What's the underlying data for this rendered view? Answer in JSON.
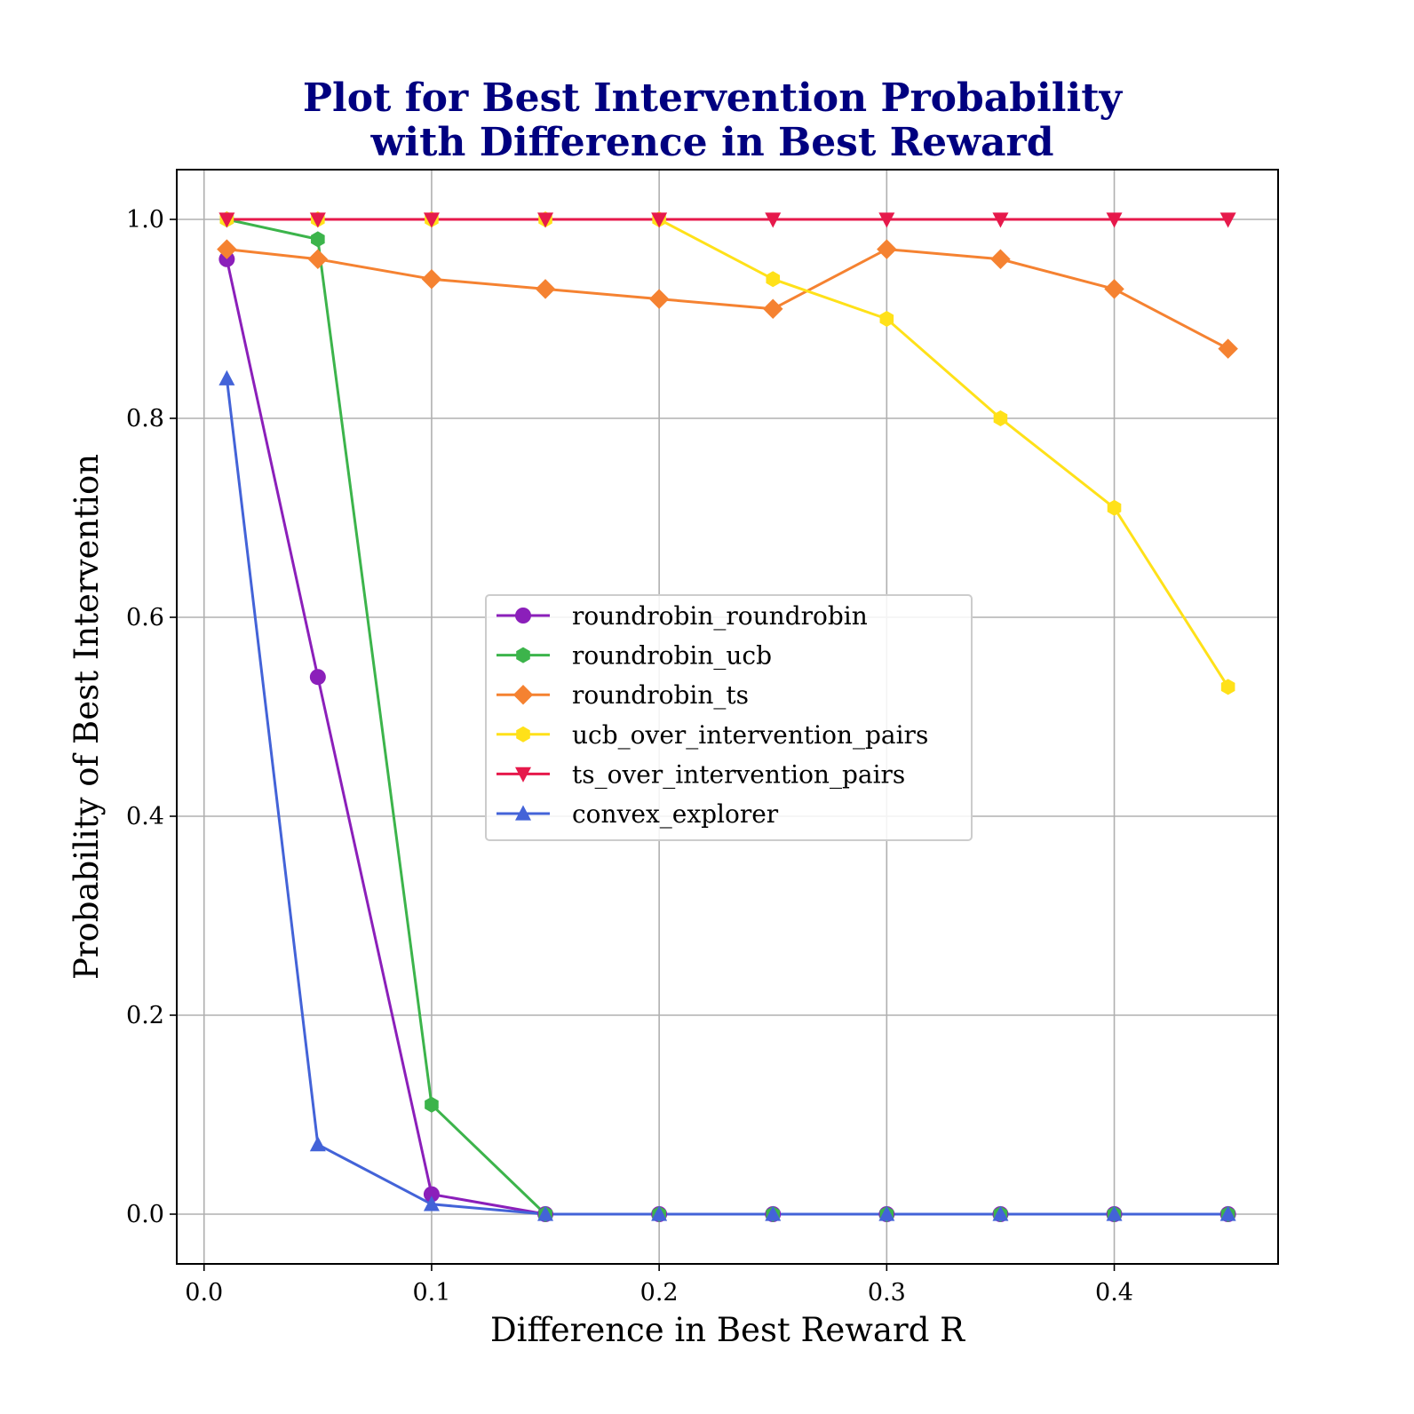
{
  "chart_data": {
    "type": "line",
    "title_lines": [
      "Plot for Best Intervention Probability",
      "with Difference in Best Reward"
    ],
    "xlabel": "Difference in Best Reward R",
    "ylabel": "Probability of Best Intervention",
    "xlim": [
      -0.012,
      0.472
    ],
    "ylim": [
      -0.05,
      1.05
    ],
    "xticks": [
      0.0,
      0.1,
      0.2,
      0.3,
      0.4
    ],
    "xtick_labels": [
      "0.0",
      "0.1",
      "0.2",
      "0.3",
      "0.4"
    ],
    "yticks": [
      0.0,
      0.2,
      0.4,
      0.6,
      0.8,
      1.0
    ],
    "ytick_labels": [
      "0.0",
      "0.2",
      "0.4",
      "0.6",
      "0.8",
      "1.0"
    ],
    "grid": true,
    "legend_position": "center",
    "x": [
      0.01,
      0.05,
      0.1,
      0.15,
      0.2,
      0.25,
      0.3,
      0.35,
      0.4,
      0.45
    ],
    "series": [
      {
        "name": "roundrobin_roundrobin",
        "color": "#8b1fba",
        "marker": "circle",
        "values": [
          0.96,
          0.54,
          0.02,
          0.0,
          0.0,
          0.0,
          0.0,
          0.0,
          0.0,
          0.0
        ]
      },
      {
        "name": "roundrobin_ucb",
        "color": "#3cb44b",
        "marker": "hexagon",
        "values": [
          1.0,
          0.98,
          0.11,
          0.0,
          0.0,
          0.0,
          0.0,
          0.0,
          0.0,
          0.0
        ]
      },
      {
        "name": "roundrobin_ts",
        "color": "#f58231",
        "marker": "diamond",
        "values": [
          0.97,
          0.96,
          0.94,
          0.93,
          0.92,
          0.91,
          0.97,
          0.96,
          0.93,
          0.87
        ]
      },
      {
        "name": "ucb_over_intervention_pairs",
        "color": "#ffe119",
        "marker": "hexagon",
        "values": [
          1.0,
          1.0,
          1.0,
          1.0,
          1.0,
          0.94,
          0.9,
          0.8,
          0.71,
          0.53
        ]
      },
      {
        "name": "ts_over_intervention_pairs",
        "color": "#e6194b",
        "marker": "triangle-down",
        "values": [
          1.0,
          1.0,
          1.0,
          1.0,
          1.0,
          1.0,
          1.0,
          1.0,
          1.0,
          1.0
        ]
      },
      {
        "name": "convex_explorer",
        "color": "#4363d8",
        "marker": "triangle-up",
        "values": [
          0.84,
          0.07,
          0.01,
          0.0,
          0.0,
          0.0,
          0.0,
          0.0,
          0.0,
          0.0
        ]
      }
    ]
  }
}
